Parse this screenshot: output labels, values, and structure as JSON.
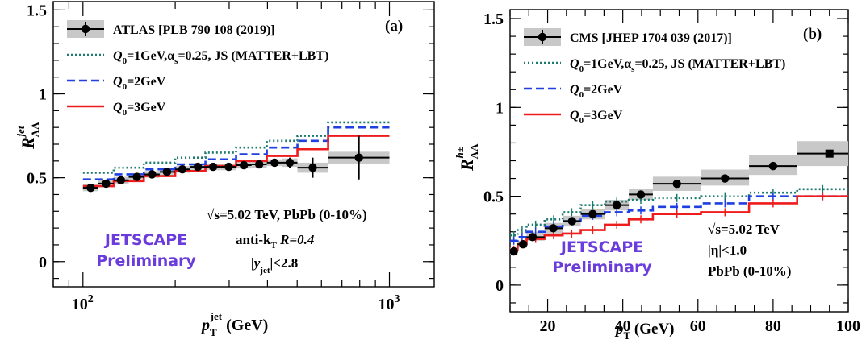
{
  "chart_data": [
    {
      "panel": "(a)",
      "type": "line",
      "xscale": "log",
      "xlim": [
        80,
        1400
      ],
      "ylim": [
        -0.15,
        1.55
      ],
      "yticks": [
        0,
        0.5,
        1,
        1.5
      ],
      "ytick_labels": [
        "0",
        "0.5",
        "1",
        "1.5"
      ],
      "xtick_labels": [
        {
          "value": 100,
          "base": "10",
          "exp": "2"
        },
        {
          "value": 1000,
          "base": "10",
          "exp": "3"
        }
      ],
      "xlabel": {
        "main": "p",
        "sub": "T",
        "sup": "jet",
        "unit": " (GeV)"
      },
      "ylabel": {
        "main": "R",
        "sub": "AA",
        "sup": "jet"
      },
      "legend": [
        {
          "label": "ATLAS [PLB 790 108 (2019)]",
          "style": "data"
        },
        {
          "label_parts": [
            "Q",
            "0",
            "=1GeV,α",
            "s",
            "=0.25, JS (MATTER+LBT)"
          ],
          "style": "dotted",
          "color": "#1a7a6e"
        },
        {
          "label_parts": [
            "Q",
            "0",
            "=2GeV"
          ],
          "style": "dashed",
          "color": "#1f3fe0"
        },
        {
          "label_parts": [
            "Q",
            "0",
            "=3GeV"
          ],
          "style": "solid",
          "color": "#ee1c1c"
        }
      ],
      "data": {
        "name": "ATLAS [PLB 790 108 (2019)]",
        "points": [
          {
            "x": 106,
            "xlo": 100,
            "xhi": 112,
            "y": 0.44,
            "err": 0.015,
            "syslo": 0.42,
            "syshi": 0.46
          },
          {
            "x": 119,
            "xlo": 112,
            "xhi": 126,
            "y": 0.465,
            "err": 0.015,
            "syslo": 0.445,
            "syshi": 0.485
          },
          {
            "x": 133,
            "xlo": 126,
            "xhi": 141,
            "y": 0.485,
            "err": 0.015,
            "syslo": 0.465,
            "syshi": 0.505
          },
          {
            "x": 150,
            "xlo": 141,
            "xhi": 158,
            "y": 0.505,
            "err": 0.015,
            "syslo": 0.485,
            "syshi": 0.525
          },
          {
            "x": 168,
            "xlo": 158,
            "xhi": 178,
            "y": 0.52,
            "err": 0.015,
            "syslo": 0.5,
            "syshi": 0.54
          },
          {
            "x": 188,
            "xlo": 178,
            "xhi": 200,
            "y": 0.535,
            "err": 0.015,
            "syslo": 0.515,
            "syshi": 0.555
          },
          {
            "x": 211,
            "xlo": 200,
            "xhi": 224,
            "y": 0.55,
            "err": 0.015,
            "syslo": 0.53,
            "syshi": 0.57
          },
          {
            "x": 237,
            "xlo": 224,
            "xhi": 251,
            "y": 0.565,
            "err": 0.015,
            "syslo": 0.545,
            "syshi": 0.585
          },
          {
            "x": 266,
            "xlo": 251,
            "xhi": 282,
            "y": 0.565,
            "err": 0.015,
            "syslo": 0.545,
            "syshi": 0.585
          },
          {
            "x": 299,
            "xlo": 282,
            "xhi": 316,
            "y": 0.565,
            "err": 0.015,
            "syslo": 0.545,
            "syshi": 0.585
          },
          {
            "x": 335,
            "xlo": 316,
            "xhi": 355,
            "y": 0.575,
            "err": 0.015,
            "syslo": 0.555,
            "syshi": 0.595
          },
          {
            "x": 376,
            "xlo": 355,
            "xhi": 398,
            "y": 0.58,
            "err": 0.02,
            "syslo": 0.56,
            "syshi": 0.6
          },
          {
            "x": 422,
            "xlo": 398,
            "xhi": 447,
            "y": 0.59,
            "err": 0.02,
            "syslo": 0.57,
            "syshi": 0.61
          },
          {
            "x": 473,
            "xlo": 447,
            "xhi": 501,
            "y": 0.59,
            "err": 0.03,
            "syslo": 0.565,
            "syshi": 0.615
          },
          {
            "x": 562,
            "xlo": 501,
            "xhi": 631,
            "y": 0.56,
            "err": 0.06,
            "syslo": 0.53,
            "syshi": 0.59
          },
          {
            "x": 795,
            "xlo": 631,
            "xhi": 1000,
            "y": 0.62,
            "err": 0.13,
            "syslo": 0.585,
            "syshi": 0.655
          }
        ]
      },
      "theory": [
        {
          "name": "Q0=1GeV,αs=0.25, JS (MATTER+LBT)",
          "color": "#1a7a6e",
          "style": "dotted",
          "edges": [
            100,
            126,
            158,
            200,
            251,
            316,
            398,
            501,
            631,
            1000
          ],
          "values": [
            0.53,
            0.56,
            0.59,
            0.62,
            0.65,
            0.68,
            0.72,
            0.75,
            0.83
          ]
        },
        {
          "name": "Q0=2GeV",
          "color": "#1f3fe0",
          "style": "dashed",
          "edges": [
            100,
            126,
            158,
            200,
            251,
            316,
            398,
            501,
            631,
            1000
          ],
          "values": [
            0.49,
            0.52,
            0.55,
            0.58,
            0.61,
            0.64,
            0.68,
            0.72,
            0.8
          ]
        },
        {
          "name": "Q0=3GeV",
          "color": "#ee1c1c",
          "style": "solid",
          "edges": [
            100,
            126,
            158,
            200,
            251,
            316,
            398,
            501,
            631,
            1000
          ],
          "values": [
            0.45,
            0.48,
            0.51,
            0.54,
            0.57,
            0.6,
            0.63,
            0.67,
            0.75
          ]
        }
      ],
      "annotations": {
        "energy": "√s=5.02 TeV, PbPb (0-10%)",
        "algo_prefix": "anti-k",
        "algo_sub": "T",
        "algo_R": " R=0.4",
        "rap_pre": "|y",
        "rap_sub": "jet",
        "rap_post": "|<2.8",
        "jetscape1": "JETSCAPE",
        "jetscape2": "Preliminary"
      }
    },
    {
      "panel": "(b)",
      "type": "line",
      "xscale": "linear",
      "xlim": [
        10,
        100
      ],
      "ylim": [
        -0.15,
        1.55
      ],
      "yticks": [
        0,
        0.5,
        1,
        1.5
      ],
      "ytick_labels": [
        "0",
        "0.5",
        "1",
        "1.5"
      ],
      "xticks": [
        20,
        40,
        60,
        80,
        100
      ],
      "xtick_labels": [
        "20",
        "40",
        "60",
        "80",
        "100"
      ],
      "xlabel": {
        "main": "p",
        "sub": "T",
        "unit": "  (GeV)"
      },
      "ylabel": {
        "main": "R",
        "sub": "AA",
        "sup": "h±"
      },
      "legend": [
        {
          "label": "CMS [JHEP 1704 039 (2017)]",
          "style": "data"
        },
        {
          "label_parts": [
            "Q",
            "0",
            "=1GeV,α",
            "s",
            "=0.25, JS (MATTER+LBT)"
          ],
          "style": "dotted",
          "color": "#1a7a6e"
        },
        {
          "label_parts": [
            "Q",
            "0",
            "=2GeV"
          ],
          "style": "dashed",
          "color": "#1f3fe0"
        },
        {
          "label_parts": [
            "Q",
            "0",
            "=3GeV"
          ],
          "style": "solid",
          "color": "#ee1c1c"
        }
      ],
      "data": {
        "name": "CMS [JHEP 1704 039 (2017)]",
        "points": [
          {
            "x": 11,
            "xlo": 10,
            "xhi": 12,
            "y": 0.19,
            "err": 0.01,
            "syslo": 0.17,
            "syshi": 0.21,
            "marker": "dot"
          },
          {
            "x": 13.5,
            "xlo": 12,
            "xhi": 14.4,
            "y": 0.23,
            "err": 0.01,
            "syslo": 0.21,
            "syshi": 0.25,
            "marker": "dot"
          },
          {
            "x": 16,
            "xlo": 14.4,
            "xhi": 19.2,
            "y": 0.27,
            "err": 0.01,
            "syslo": 0.25,
            "syshi": 0.3,
            "marker": "dot"
          },
          {
            "x": 21.5,
            "xlo": 19.2,
            "xhi": 24,
            "y": 0.32,
            "err": 0.01,
            "syslo": 0.29,
            "syshi": 0.35,
            "marker": "dot"
          },
          {
            "x": 26.5,
            "xlo": 24,
            "xhi": 28.8,
            "y": 0.36,
            "err": 0.01,
            "syslo": 0.33,
            "syshi": 0.39,
            "marker": "dot"
          },
          {
            "x": 32,
            "xlo": 28.8,
            "xhi": 35.2,
            "y": 0.4,
            "err": 0.01,
            "syslo": 0.37,
            "syshi": 0.43,
            "marker": "dot"
          },
          {
            "x": 38.4,
            "xlo": 35.2,
            "xhi": 41.6,
            "y": 0.45,
            "err": 0.01,
            "syslo": 0.42,
            "syshi": 0.48,
            "marker": "dot"
          },
          {
            "x": 44.8,
            "xlo": 41.6,
            "xhi": 48,
            "y": 0.51,
            "err": 0.01,
            "syslo": 0.48,
            "syshi": 0.54,
            "marker": "dot"
          },
          {
            "x": 54.4,
            "xlo": 48,
            "xhi": 60.8,
            "y": 0.57,
            "err": 0.01,
            "syslo": 0.53,
            "syshi": 0.61,
            "marker": "dot"
          },
          {
            "x": 67.2,
            "xlo": 60.8,
            "xhi": 73.6,
            "y": 0.6,
            "err": 0.01,
            "syslo": 0.56,
            "syshi": 0.65,
            "marker": "dot"
          },
          {
            "x": 80,
            "xlo": 73.6,
            "xhi": 86.4,
            "y": 0.67,
            "err": 0.01,
            "syslo": 0.62,
            "syshi": 0.73,
            "marker": "dot"
          },
          {
            "x": 95,
            "xlo": 86.4,
            "xhi": 103.6,
            "y": 0.74,
            "err": 0.015,
            "syslo": 0.67,
            "syshi": 0.81,
            "marker": "square"
          }
        ]
      },
      "theory": [
        {
          "name": "Q0=1GeV,αs=0.25, JS (MATTER+LBT)",
          "color": "#1a7a6e",
          "style": "dotted",
          "edges": [
            10,
            12,
            14.4,
            19.2,
            24,
            28.8,
            35.2,
            41.6,
            48,
            60.8,
            73.6,
            86.4,
            100
          ],
          "values": [
            0.28,
            0.31,
            0.34,
            0.37,
            0.41,
            0.45,
            0.47,
            0.48,
            0.49,
            0.5,
            0.52,
            0.54
          ]
        },
        {
          "name": "Q0=2GeV",
          "color": "#1f3fe0",
          "style": "dashed",
          "edges": [
            10,
            12,
            14.4,
            19.2,
            24,
            28.8,
            35.2,
            41.6,
            48,
            60.8,
            73.6,
            86.4,
            100
          ],
          "values": [
            0.25,
            0.27,
            0.3,
            0.33,
            0.36,
            0.39,
            0.41,
            0.42,
            0.44,
            0.46,
            0.5,
            0.5
          ]
        },
        {
          "name": "Q0=3GeV",
          "color": "#ee1c1c",
          "style": "solid",
          "edges": [
            10,
            12,
            14.4,
            19.2,
            24,
            28.8,
            35.2,
            41.6,
            48,
            60.8,
            73.6,
            86.4,
            100
          ],
          "values": [
            0.2,
            0.23,
            0.26,
            0.28,
            0.29,
            0.31,
            0.34,
            0.37,
            0.4,
            0.41,
            0.46,
            0.5
          ]
        }
      ],
      "annotations": {
        "energy": "√s=5.02 TeV",
        "eta": "|η|<1.0",
        "system": "PbPb (0-10%)",
        "jetscape1": "JETSCAPE",
        "jetscape2": "Preliminary"
      }
    }
  ]
}
